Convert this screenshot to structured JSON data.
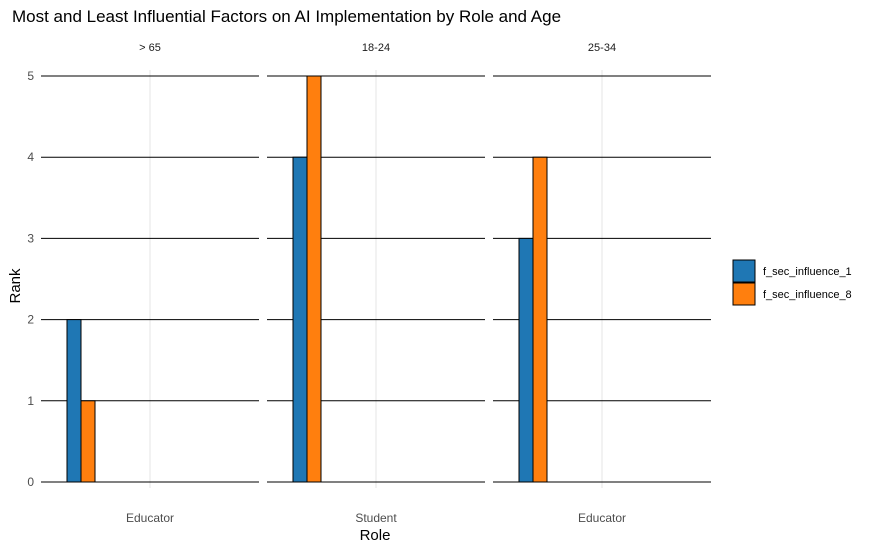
{
  "chart_data": {
    "type": "bar",
    "title": "Most and Least Influential Factors on AI Implementation by Role and Age",
    "xlabel": "Role",
    "ylabel": "Rank",
    "ylim": [
      0,
      5
    ],
    "yticks": [
      "0",
      "1",
      "2",
      "3",
      "4",
      "5"
    ],
    "grid": true,
    "legend_position": "right",
    "colors": {
      "f_sec_influence_1": "#1f77b4",
      "f_sec_influence_8": "#ff7f0e"
    },
    "facets": [
      {
        "label": "> 65",
        "category": "Educator",
        "values": {
          "f_sec_influence_1": 2,
          "f_sec_influence_8": 1
        }
      },
      {
        "label": "18-24",
        "category": "Student",
        "values": {
          "f_sec_influence_1": 4,
          "f_sec_influence_8": 5
        }
      },
      {
        "label": "25-34",
        "category": "Educator",
        "values": {
          "f_sec_influence_1": 3,
          "f_sec_influence_8": 4
        }
      }
    ],
    "series": [
      {
        "name": "f_sec_influence_1",
        "color": "#1f77b4"
      },
      {
        "name": "f_sec_influence_8",
        "color": "#ff7f0e"
      }
    ]
  }
}
